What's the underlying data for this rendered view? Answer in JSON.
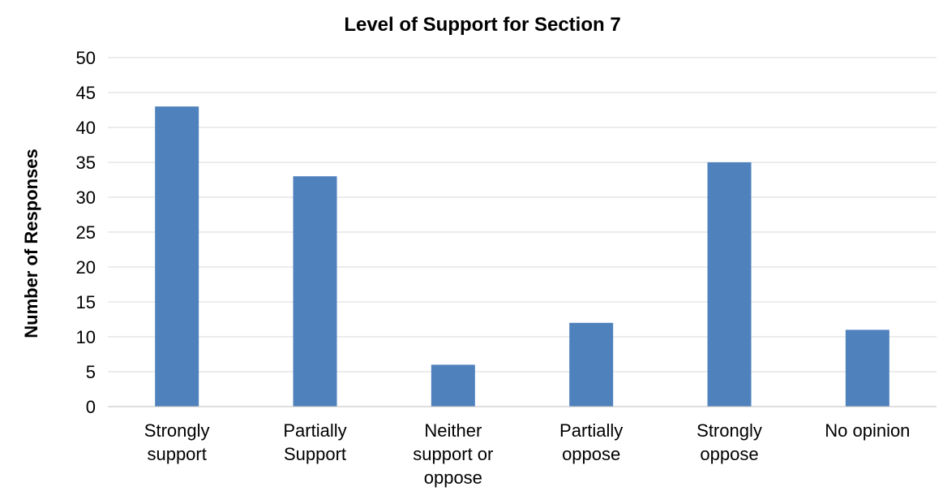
{
  "chart_data": {
    "type": "bar",
    "title": "Level of Support for Section 7",
    "xlabel": "",
    "ylabel": "Number of Responses",
    "categories": [
      [
        "Strongly",
        "support"
      ],
      [
        "Partially",
        "Support"
      ],
      [
        "Neither",
        "support or",
        "oppose"
      ],
      [
        "Partially",
        "oppose"
      ],
      [
        "Strongly",
        "oppose"
      ],
      [
        "No opinion"
      ]
    ],
    "values": [
      43,
      33,
      6,
      12,
      35,
      11
    ],
    "ylim": [
      0,
      50
    ],
    "yticks": [
      0,
      5,
      10,
      15,
      20,
      25,
      30,
      35,
      40,
      45,
      50
    ],
    "grid": true,
    "legend": "none",
    "bar_color": "#4f81bd"
  }
}
